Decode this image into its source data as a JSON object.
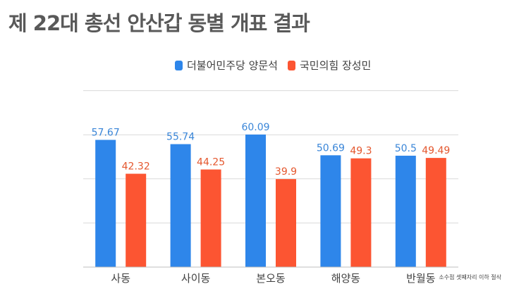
{
  "title": "제 22대 총선 안산갑 동별 개표 결과",
  "footnote": "소수점 셋째자리 이하 절삭",
  "colors": {
    "series1": "#2e86ea",
    "series2": "#fc5532",
    "series1_label": "#3a86d8",
    "series2_label": "#e4572e",
    "grid": "#d9d9d9",
    "axis": "#bfbfbf",
    "text": "#404040"
  },
  "legend": {
    "position": "top-center",
    "items": [
      "더불어민주당 양문석",
      "국민의힘 장성민"
    ]
  },
  "chart_data": {
    "type": "bar",
    "title": "제 22대 총선 안산갑 동별 개표 결과",
    "categories": [
      "사동",
      "사이동",
      "본오동",
      "해양동",
      "반월동"
    ],
    "series": [
      {
        "name": "더불어민주당 양문석",
        "values": [
          57.67,
          55.74,
          60.09,
          50.69,
          50.5
        ]
      },
      {
        "name": "국민의힘 장성민",
        "values": [
          42.32,
          44.25,
          39.9,
          49.3,
          49.49
        ]
      }
    ],
    "value_labels": [
      [
        "57.67",
        "55.74",
        "60.09",
        "50.69",
        "50.5"
      ],
      [
        "42.32",
        "44.25",
        "39.9",
        "49.3",
        "49.49"
      ]
    ],
    "ylim": [
      0,
      80
    ],
    "grid": true,
    "y_ticks_visible": false,
    "xlabel": "",
    "ylabel": ""
  }
}
